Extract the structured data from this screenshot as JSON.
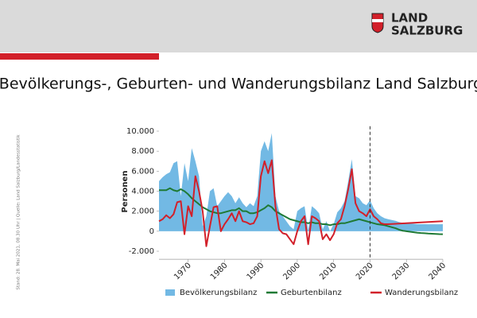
{
  "header": {
    "logo_line1": "LAND",
    "logo_line2": "SALZBURG"
  },
  "source": "Stand: 28. Mai 2021, 08.30 Uhr | Quelle: Land Salzburg/Landesstatistik",
  "chart_data": {
    "type": "area-line",
    "title": "Bevölkerungs-, Geburten- und Wanderungsbilanz Land Salzburg",
    "y_label": "Personen",
    "x": [
      1962,
      1963,
      1964,
      1965,
      1966,
      1967,
      1968,
      1969,
      1970,
      1971,
      1972,
      1973,
      1974,
      1975,
      1976,
      1977,
      1978,
      1979,
      1980,
      1981,
      1982,
      1983,
      1984,
      1985,
      1986,
      1987,
      1988,
      1989,
      1990,
      1991,
      1992,
      1993,
      1994,
      1995,
      1996,
      1997,
      1998,
      1999,
      2000,
      2001,
      2002,
      2003,
      2004,
      2005,
      2006,
      2007,
      2008,
      2009,
      2010,
      2011,
      2012,
      2013,
      2014,
      2015,
      2016,
      2017,
      2018,
      2019,
      2020,
      2021,
      2022,
      2023,
      2024,
      2025,
      2026,
      2027,
      2028,
      2029,
      2030,
      2031,
      2032,
      2033,
      2034,
      2035,
      2036,
      2037,
      2038,
      2039,
      2040
    ],
    "series": [
      {
        "name": "Bevölkerungsbilanz",
        "kind": "area",
        "color": "#72b9e4",
        "values": [
          5000,
          5400,
          5700,
          5900,
          6800,
          7000,
          3500,
          6800,
          5000,
          8300,
          7000,
          5500,
          500,
          1500,
          4000,
          4300,
          2500,
          3000,
          3500,
          3900,
          3500,
          2800,
          3400,
          2800,
          2400,
          2800,
          2500,
          3500,
          8000,
          9000,
          8000,
          9800,
          3500,
          2000,
          1500,
          1000,
          500,
          200,
          2000,
          2300,
          2500,
          100,
          2500,
          2200,
          1800,
          200,
          1000,
          0,
          700,
          1900,
          2300,
          3000,
          5000,
          7200,
          3500,
          3300,
          2800,
          2600,
          3100,
          2300,
          1800,
          1500,
          1300,
          1200,
          1120,
          1040,
          910,
          830,
          800,
          770,
          740,
          710,
          700,
          700,
          690,
          690,
          690,
          690,
          700
        ]
      },
      {
        "name": "Geburtenbilanz",
        "kind": "line",
        "color": "#1f7a35",
        "values": [
          4100,
          4100,
          4100,
          4300,
          4100,
          4000,
          4200,
          4000,
          3700,
          3300,
          3000,
          2700,
          2400,
          2200,
          2000,
          1900,
          1800,
          1800,
          1900,
          2000,
          2100,
          2100,
          2300,
          2000,
          2000,
          1800,
          1800,
          1900,
          2100,
          2300,
          2600,
          2400,
          2000,
          1800,
          1600,
          1400,
          1200,
          1100,
          1000,
          900,
          900,
          800,
          900,
          800,
          800,
          700,
          700,
          600,
          700,
          700,
          800,
          800,
          900,
          1000,
          1100,
          1200,
          1100,
          1000,
          900,
          800,
          700,
          650,
          600,
          500,
          400,
          300,
          150,
          50,
          0,
          -50,
          -100,
          -150,
          -180,
          -200,
          -230,
          -250,
          -270,
          -290,
          -300
        ]
      },
      {
        "name": "Wanderungsbilanz",
        "kind": "line",
        "color": "#d2202a",
        "values": [
          1000,
          1200,
          1600,
          1300,
          1700,
          2900,
          3000,
          -300,
          2500,
          1500,
          5500,
          4000,
          2000,
          -1500,
          500,
          2400,
          2500,
          0,
          700,
          1200,
          1800,
          1000,
          2000,
          1000,
          900,
          700,
          800,
          1500,
          5500,
          7000,
          5800,
          7100,
          2500,
          200,
          -200,
          -300,
          -800,
          -1300,
          0,
          1000,
          1500,
          -1300,
          1500,
          1300,
          1000,
          -800,
          -300,
          -900,
          -300,
          800,
          1200,
          2500,
          4200,
          6200,
          2800,
          2000,
          1800,
          1500,
          2200,
          1500,
          1200,
          800,
          700,
          700,
          720,
          740,
          760,
          780,
          800,
          820,
          840,
          860,
          880,
          900,
          920,
          940,
          960,
          980,
          1000
        ]
      }
    ],
    "xlim": [
      1962,
      2040
    ],
    "xticks": [
      1970,
      1980,
      1990,
      2000,
      2010,
      2020,
      2030,
      2040
    ],
    "ylim": [
      -2800,
      10500
    ],
    "yticks": [
      {
        "value": -2000,
        "label": "-2.000"
      },
      0,
      {
        "value": 2000,
        "label": "2.000"
      },
      {
        "value": 4000,
        "label": "4.000"
      },
      {
        "value": 6000,
        "label": "6.000"
      },
      {
        "value": 8000,
        "label": "8.000"
      },
      {
        "value": 10000,
        "label": "10.000"
      }
    ],
    "forecast_line_x": 2020
  }
}
